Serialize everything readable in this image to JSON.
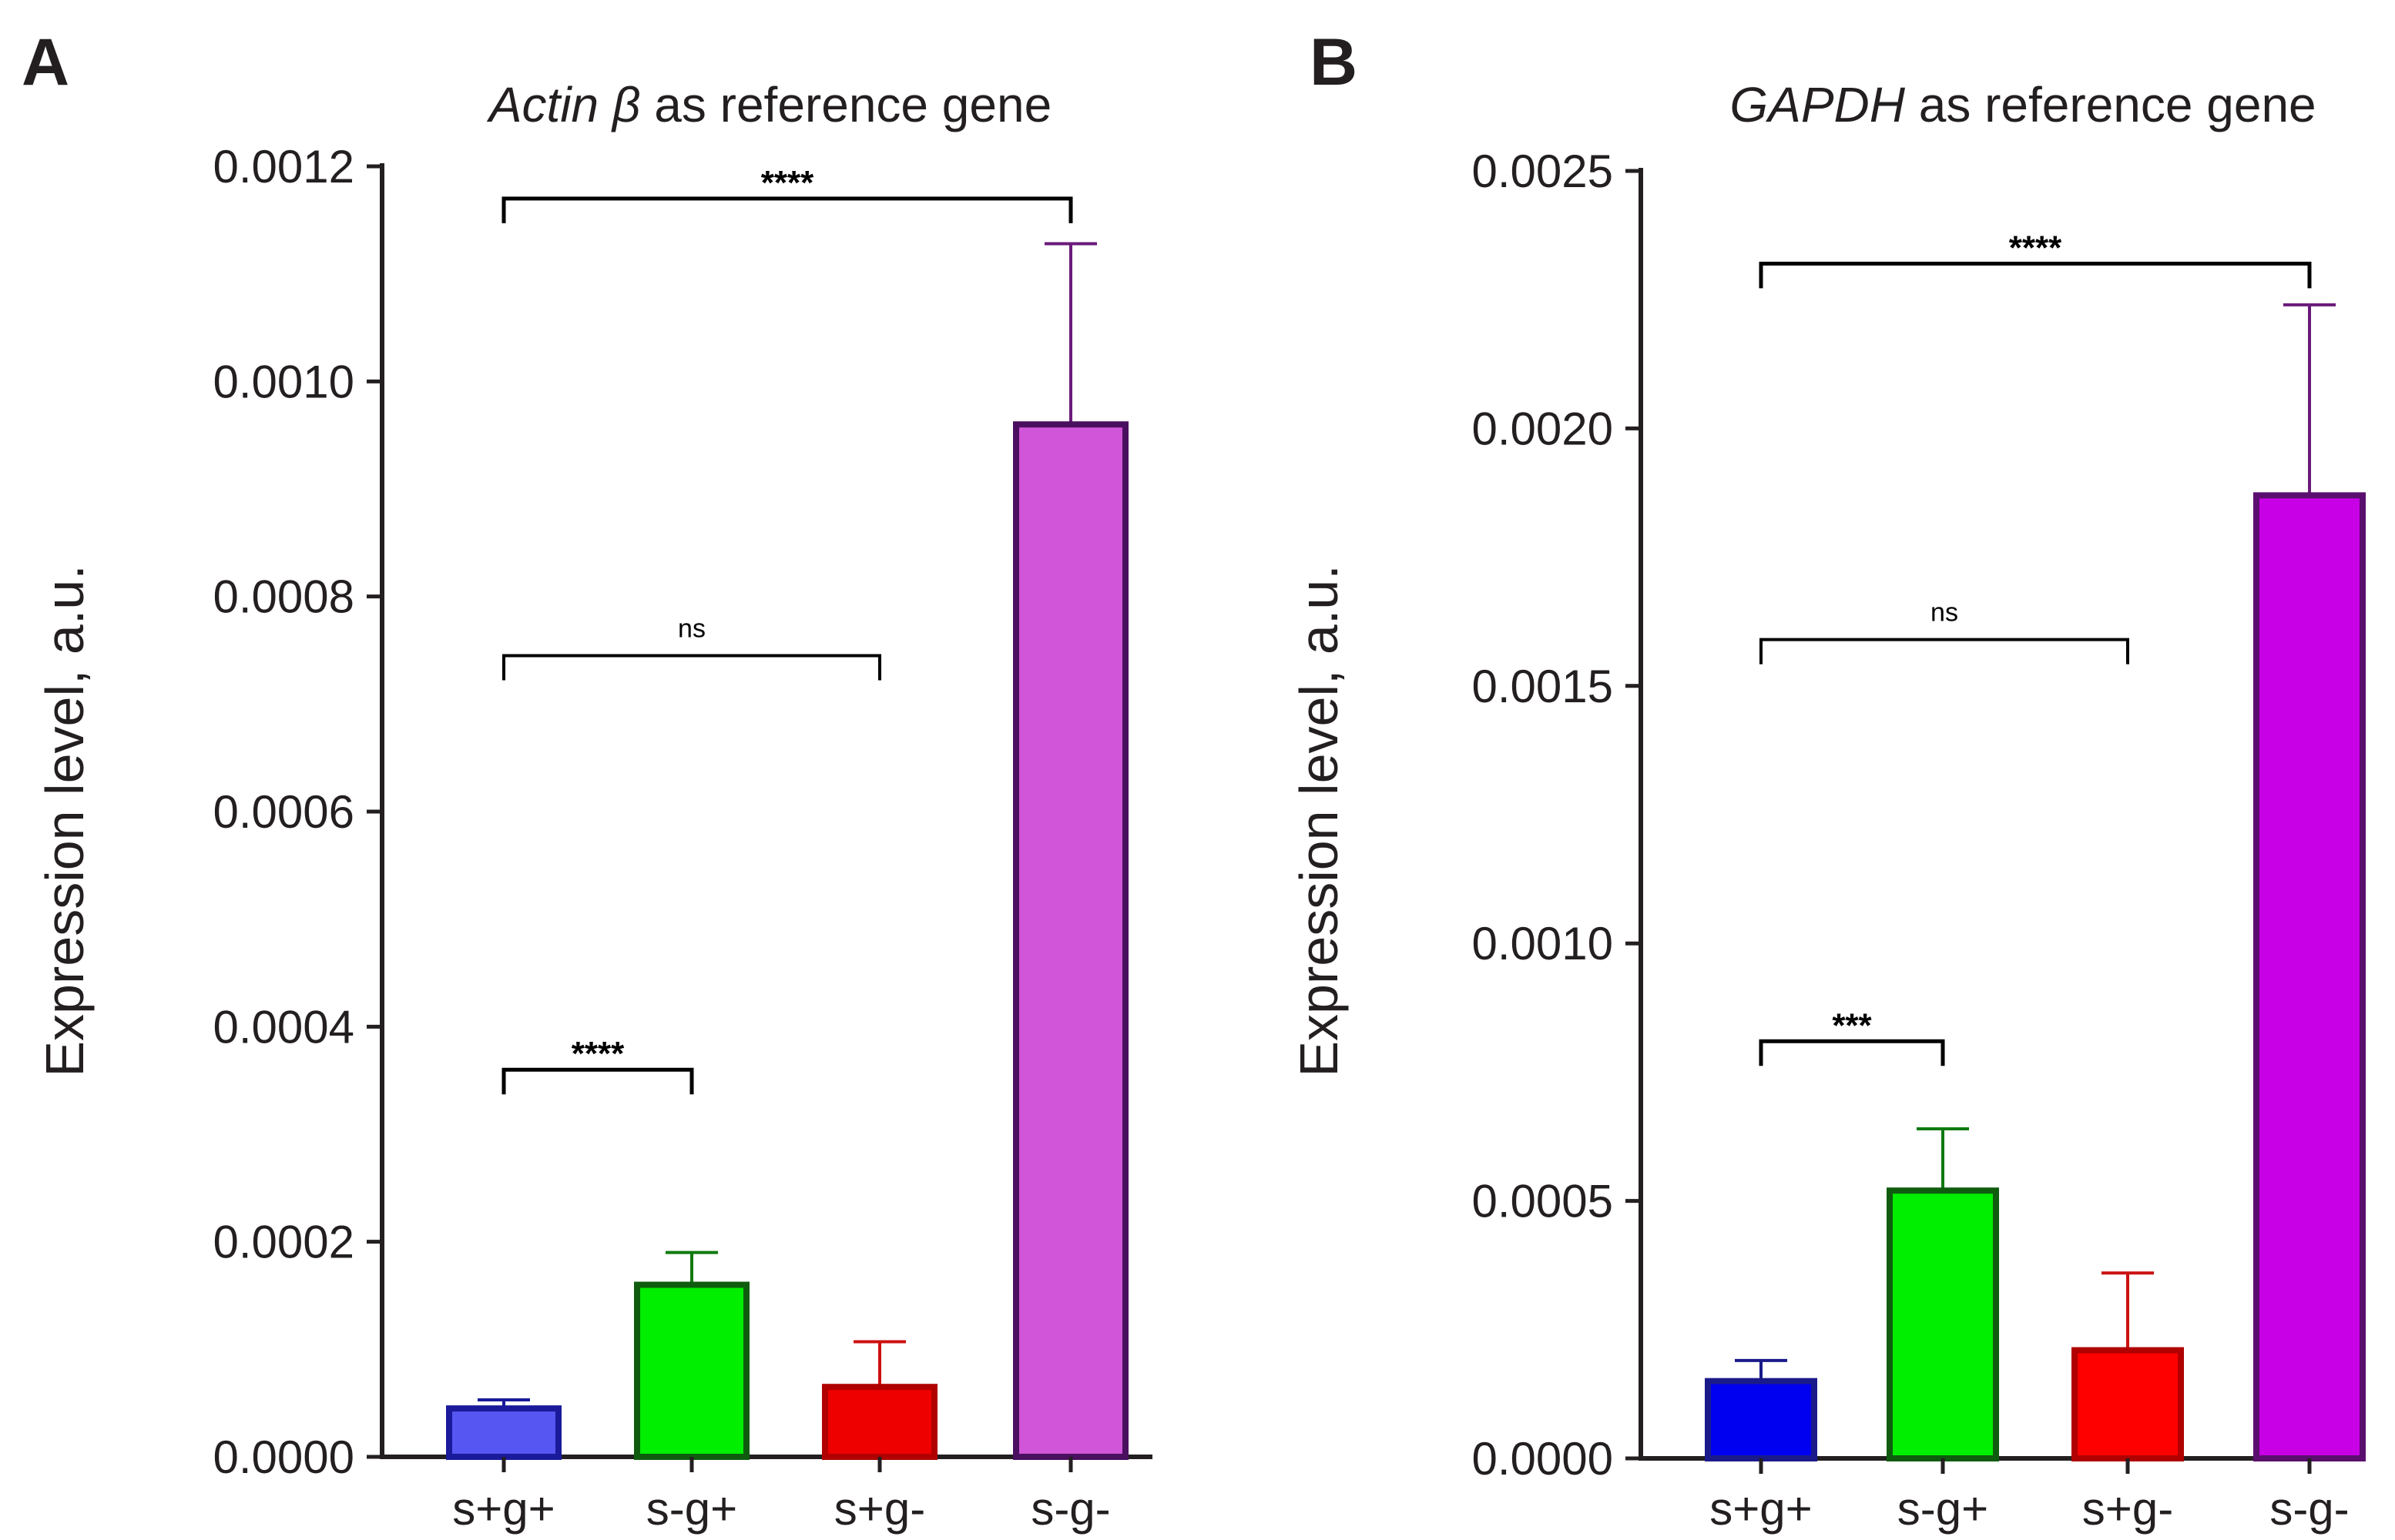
{
  "chart_data": [
    {
      "panel_label": "A",
      "type": "bar",
      "title_italic": "Actin β",
      "title_rest": " as reference gene",
      "ylabel": "Expression level, a.u.",
      "xlabel": "",
      "ylim": [
        0,
        0.0012
      ],
      "yticks": [
        "0.0000",
        "0.0002",
        "0.0004",
        "0.0006",
        "0.0008",
        "0.0010",
        "0.0012"
      ],
      "ytick_values": [
        0,
        0.0002,
        0.0004,
        0.0006,
        0.0008,
        0.001,
        0.0012
      ],
      "categories": [
        "s+g+",
        "s-g+",
        "s+g-",
        "s-g-"
      ],
      "values": [
        4.5e-05,
        0.00016,
        6.5e-05,
        0.00096
      ],
      "errors": [
        8e-06,
        3e-05,
        4.2e-05,
        0.000168
      ],
      "colors": {
        "fill": [
          "#5656f2",
          "#00ee00",
          "#ee0000",
          "#d155d8"
        ],
        "stroke": [
          "#1a1a9a",
          "#0f5c0f",
          "#b00000",
          "#4a0f5e"
        ],
        "error": [
          "#1a1a9a",
          "#0f7a0f",
          "#cc1111",
          "#6a1a7a"
        ]
      },
      "comparisons": [
        {
          "from": 0,
          "to": 3,
          "label": "****",
          "y": 0.00117
        },
        {
          "from": 0,
          "to": 2,
          "label": "ns",
          "y": 0.000745
        },
        {
          "from": 0,
          "to": 1,
          "label": "****",
          "y": 0.00036
        }
      ]
    },
    {
      "panel_label": "B",
      "type": "bar",
      "title_italic": "GAPDH",
      "title_rest": " as reference gene",
      "ylabel": "Expression level, a.u.",
      "xlabel": "",
      "ylim": [
        0,
        0.0025
      ],
      "yticks": [
        "0.0000",
        "0.0005",
        "0.0010",
        "0.0015",
        "0.0020",
        "0.0025"
      ],
      "ytick_values": [
        0,
        0.0005,
        0.001,
        0.0015,
        0.002,
        0.0025
      ],
      "categories": [
        "s+g+",
        "s-g+",
        "s+g-",
        "s-g-"
      ],
      "values": [
        0.00015,
        0.00052,
        0.00021,
        0.00187
      ],
      "errors": [
        4e-05,
        0.00012,
        0.00015,
        0.00037
      ],
      "colors": {
        "fill": [
          "#0000f0",
          "#00ee00",
          "#ff0000",
          "#c800e6"
        ],
        "stroke": [
          "#1a1a8a",
          "#0f5c0f",
          "#b00000",
          "#5a0f6e"
        ],
        "error": [
          "#1a1a8a",
          "#0f7a0f",
          "#cc1111",
          "#6a1a7a"
        ]
      },
      "comparisons": [
        {
          "from": 0,
          "to": 3,
          "label": "****",
          "y": 0.00232
        },
        {
          "from": 0,
          "to": 2,
          "label": "ns",
          "y": 0.00159
        },
        {
          "from": 0,
          "to": 1,
          "label": "***",
          "y": 0.00081
        }
      ]
    }
  ]
}
